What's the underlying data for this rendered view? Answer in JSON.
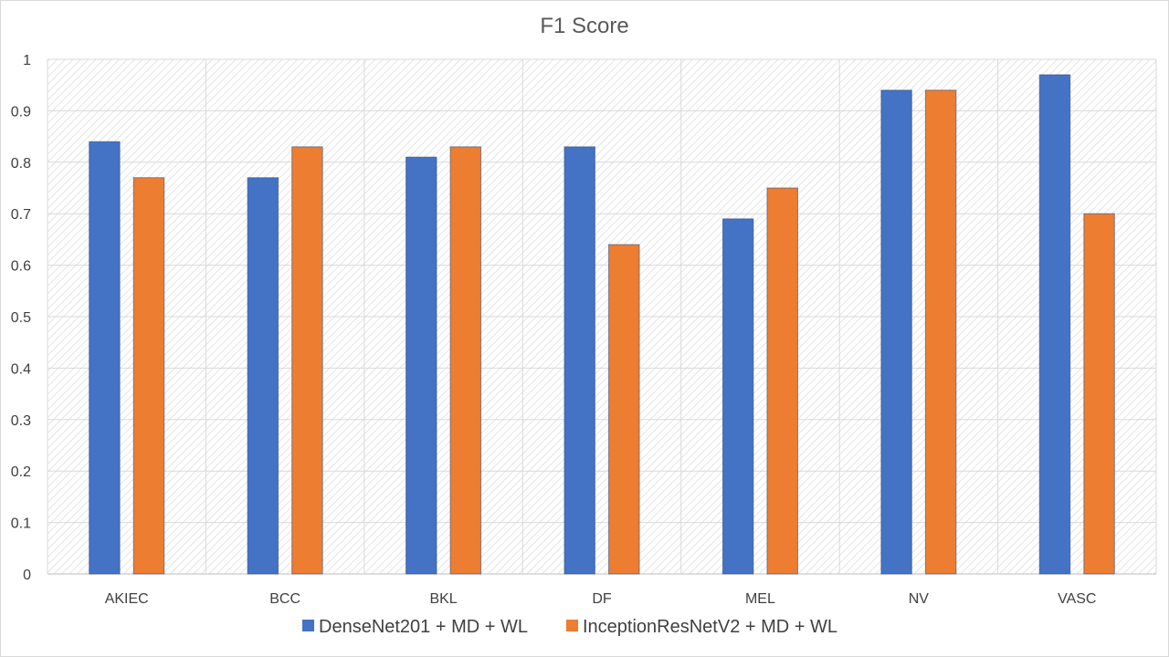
{
  "chart_data": {
    "type": "bar",
    "title": "F1 Score",
    "categories": [
      "AKIEC",
      "BCC",
      "BKL",
      "DF",
      "MEL",
      "NV",
      "VASC"
    ],
    "series": [
      {
        "name": "DenseNet201 + MD + WL",
        "color": "#4472C4",
        "values": [
          0.84,
          0.77,
          0.81,
          0.83,
          0.69,
          0.94,
          0.97
        ]
      },
      {
        "name": "InceptionResNetV2 + MD + WL",
        "color": "#ED7D31",
        "values": [
          0.77,
          0.83,
          0.83,
          0.64,
          0.75,
          0.94,
          0.7
        ]
      }
    ],
    "ylim": [
      0,
      1
    ],
    "yticks": [
      "0",
      "0.1",
      "0.2",
      "0.3",
      "0.4",
      "0.5",
      "0.6",
      "0.7",
      "0.8",
      "0.9",
      "1"
    ],
    "grid": true,
    "legend_position": "bottom"
  }
}
